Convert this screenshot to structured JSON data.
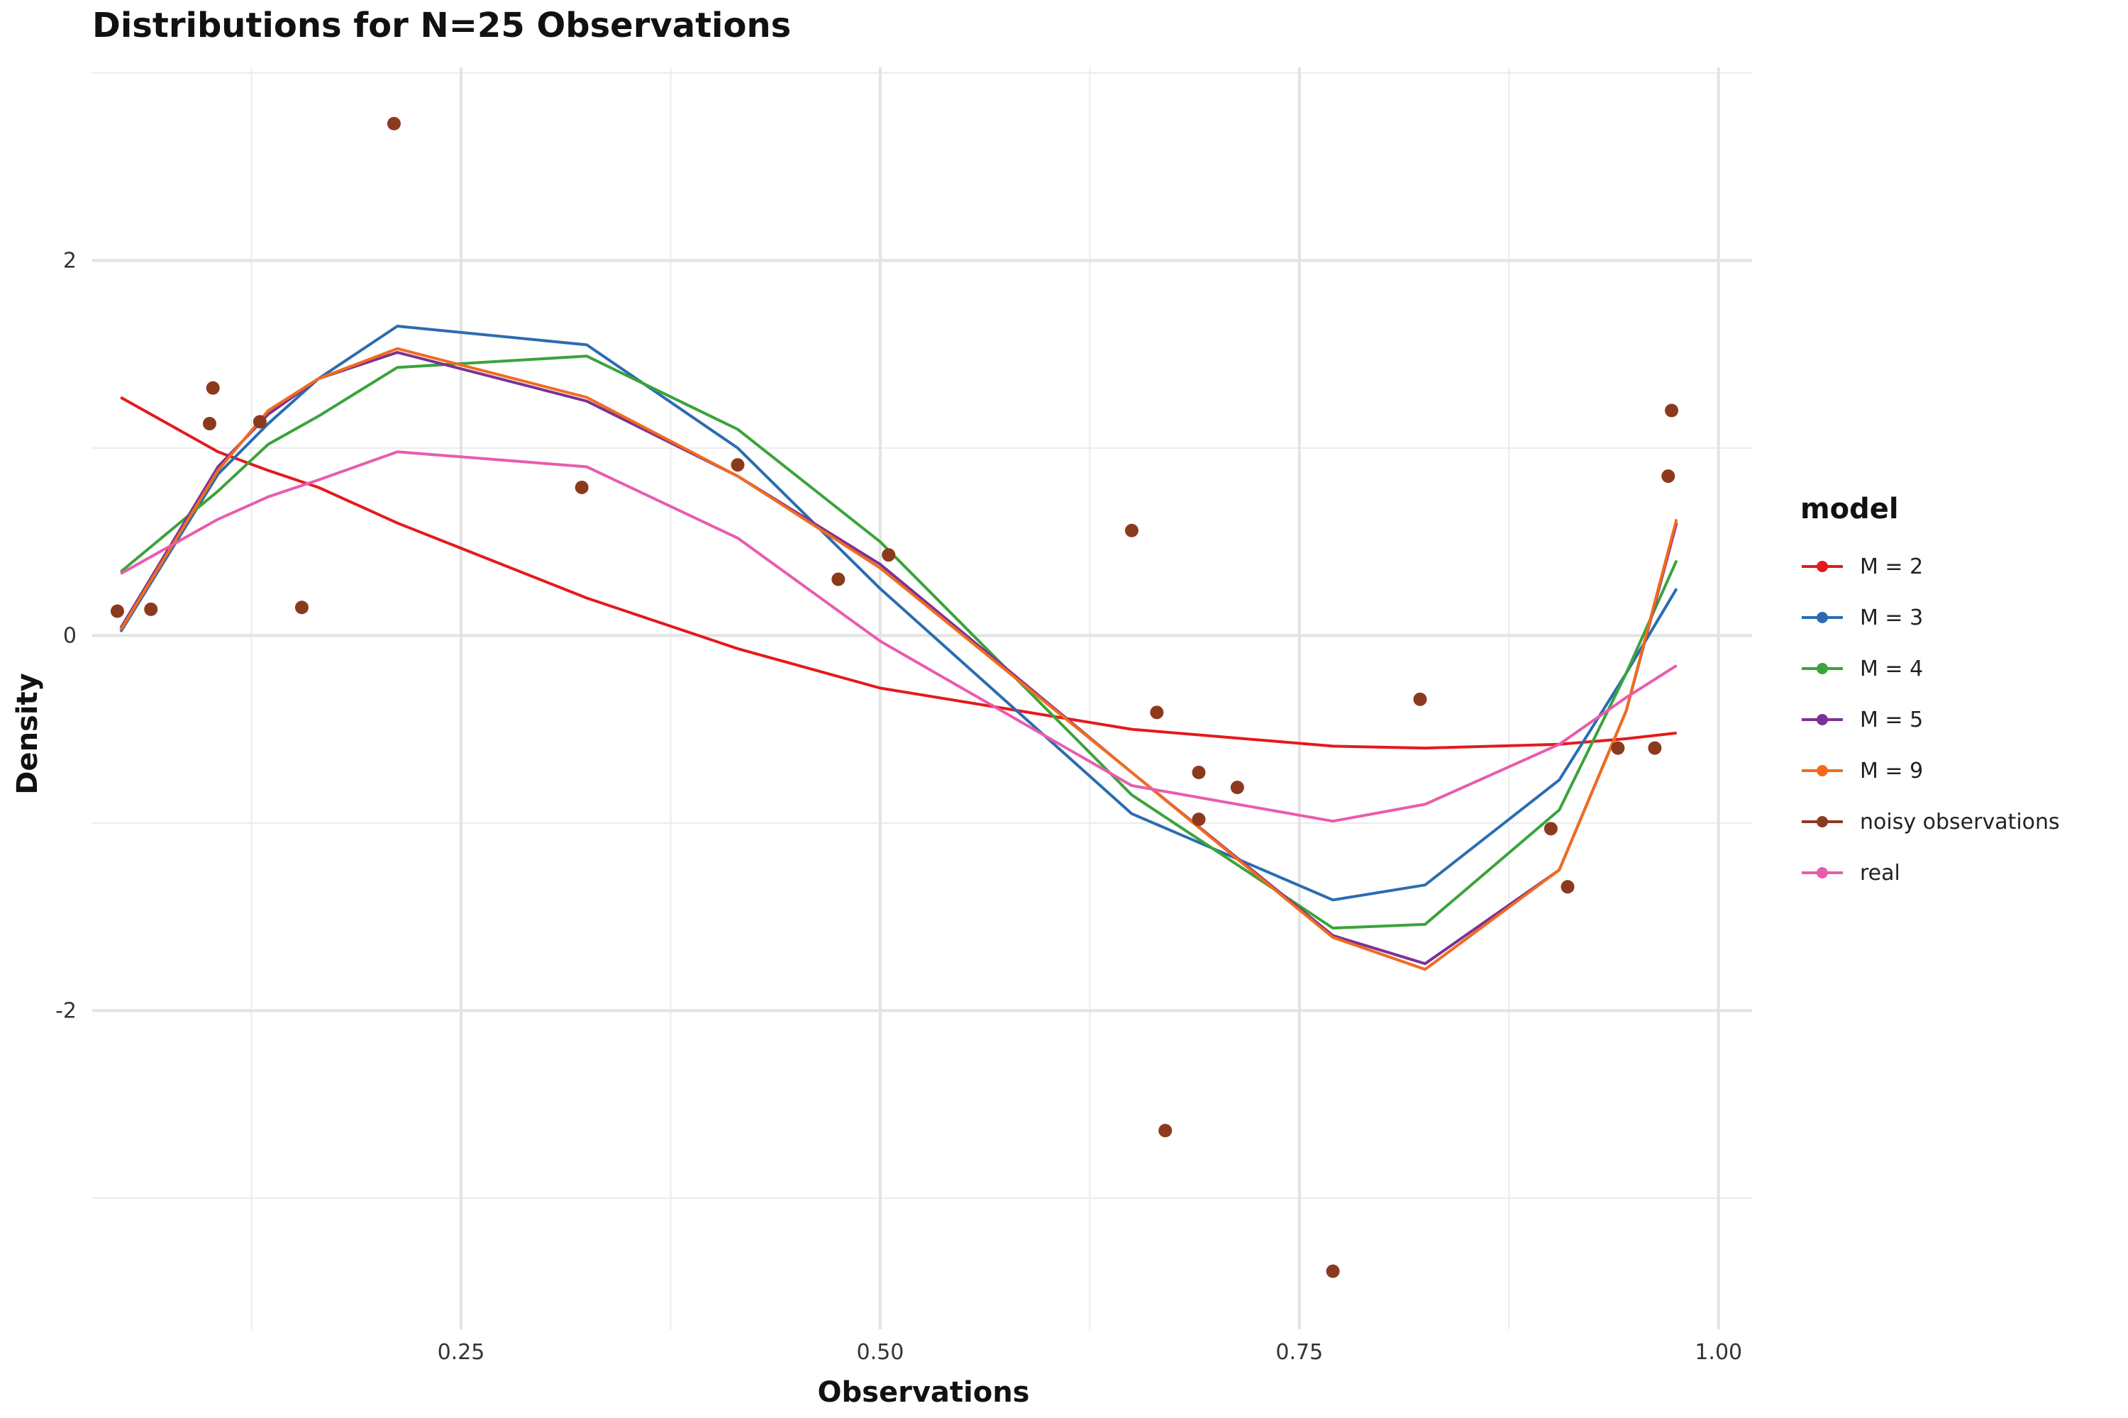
{
  "title": "Distributions for N=25 Observations",
  "chart_data": {
    "type": "line",
    "title": "Distributions for N=25 Observations",
    "xlabel": "Observations",
    "ylabel": "Density",
    "xlim": [
      0.03,
      1.02
    ],
    "ylim": [
      -3.7,
      3.03
    ],
    "x_ticks": [
      0.25,
      0.5,
      0.75,
      1.0
    ],
    "x_tick_labels": [
      "0.25",
      "0.50",
      "0.75",
      "1.00"
    ],
    "y_ticks": [
      -2,
      0,
      2
    ],
    "y_tick_labels": [
      "-2",
      "0",
      "2"
    ],
    "grid": true,
    "legend_title": "model",
    "legend_position": "right",
    "x": [
      0.047,
      0.105,
      0.135,
      0.165,
      0.212,
      0.325,
      0.415,
      0.5,
      0.65,
      0.77,
      0.825,
      0.905,
      0.945,
      0.975
    ],
    "series": [
      {
        "name": "M = 2",
        "color": "#E41A1C",
        "values": [
          1.27,
          0.98,
          0.88,
          0.79,
          0.6,
          0.2,
          -0.07,
          -0.28,
          -0.5,
          -0.59,
          -0.6,
          -0.58,
          -0.55,
          -0.52
        ]
      },
      {
        "name": "M = 3",
        "color": "#2B6CB0",
        "values": [
          0.02,
          0.86,
          1.13,
          1.37,
          1.65,
          1.55,
          1.0,
          0.25,
          -0.95,
          -1.41,
          -1.33,
          -0.77,
          -0.2,
          0.25
        ]
      },
      {
        "name": "M = 4",
        "color": "#3BA33B",
        "values": [
          0.34,
          0.77,
          1.02,
          1.17,
          1.43,
          1.49,
          1.1,
          0.5,
          -0.85,
          -1.56,
          -1.54,
          -0.93,
          -0.2,
          0.4
        ]
      },
      {
        "name": "M = 5",
        "color": "#7B3294",
        "values": [
          0.04,
          0.9,
          1.18,
          1.37,
          1.51,
          1.25,
          0.85,
          0.38,
          -0.73,
          -1.6,
          -1.75,
          -1.25,
          -0.4,
          0.6
        ]
      },
      {
        "name": "M = 9",
        "color": "#F26B1D",
        "values": [
          0.03,
          0.88,
          1.2,
          1.37,
          1.53,
          1.27,
          0.85,
          0.36,
          -0.73,
          -1.61,
          -1.78,
          -1.25,
          -0.4,
          0.62
        ]
      },
      {
        "name": "real",
        "color": "#E85CAE",
        "values": [
          0.33,
          0.62,
          0.74,
          0.83,
          0.98,
          0.9,
          0.52,
          -0.03,
          -0.8,
          -0.99,
          -0.9,
          -0.58,
          -0.33,
          -0.16
        ]
      }
    ],
    "scatter": {
      "name": "noisy observations",
      "color": "#8C3A1E",
      "points": [
        {
          "x": 0.045,
          "y": 0.13
        },
        {
          "x": 0.065,
          "y": 0.14
        },
        {
          "x": 0.1,
          "y": 1.13
        },
        {
          "x": 0.102,
          "y": 1.32
        },
        {
          "x": 0.13,
          "y": 1.14
        },
        {
          "x": 0.155,
          "y": 0.15
        },
        {
          "x": 0.21,
          "y": 2.73
        },
        {
          "x": 0.322,
          "y": 0.79
        },
        {
          "x": 0.415,
          "y": 0.91
        },
        {
          "x": 0.475,
          "y": 0.3
        },
        {
          "x": 0.505,
          "y": 0.43
        },
        {
          "x": 0.65,
          "y": 0.56
        },
        {
          "x": 0.665,
          "y": -0.41
        },
        {
          "x": 0.67,
          "y": -2.64
        },
        {
          "x": 0.69,
          "y": -0.73
        },
        {
          "x": 0.69,
          "y": -0.98
        },
        {
          "x": 0.713,
          "y": -0.81
        },
        {
          "x": 0.77,
          "y": -3.39
        },
        {
          "x": 0.822,
          "y": -0.34
        },
        {
          "x": 0.9,
          "y": -1.03
        },
        {
          "x": 0.91,
          "y": -1.34
        },
        {
          "x": 0.94,
          "y": -0.6
        },
        {
          "x": 0.962,
          "y": -0.6
        },
        {
          "x": 0.97,
          "y": 0.85
        },
        {
          "x": 0.972,
          "y": 1.2
        }
      ]
    }
  },
  "legend": {
    "title": "model",
    "items": [
      {
        "label": "M = 2",
        "color": "#E41A1C",
        "kind": "line"
      },
      {
        "label": "M = 3",
        "color": "#2B6CB0",
        "kind": "line"
      },
      {
        "label": "M = 4",
        "color": "#3BA33B",
        "kind": "line"
      },
      {
        "label": "M = 5",
        "color": "#7B3294",
        "kind": "line"
      },
      {
        "label": "M = 9",
        "color": "#F26B1D",
        "kind": "line"
      },
      {
        "label": "noisy observations",
        "color": "#8C3A1E",
        "kind": "point"
      },
      {
        "label": "real",
        "color": "#E85CAE",
        "kind": "line"
      }
    ]
  }
}
